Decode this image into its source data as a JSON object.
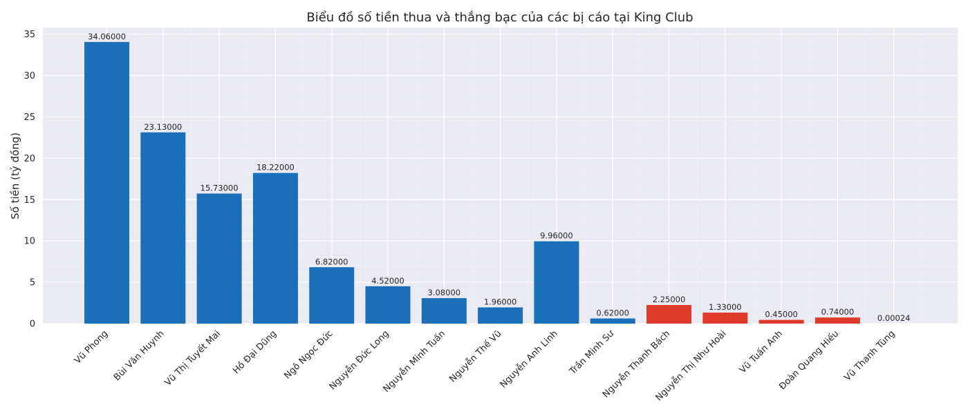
{
  "chart_data": {
    "type": "bar",
    "title": "Biểu đồ số tiền thua và thắng bạc của các bị cáo tại King Club",
    "xlabel": "",
    "ylabel": "Số tiền (tỷ đồng)",
    "ylim": [
      0,
      35.8
    ],
    "yticks": [
      0,
      5,
      10,
      15,
      20,
      25,
      30,
      35
    ],
    "grid": true,
    "categories": [
      "Vũ Phong",
      "Bùi Văn Huynh",
      "Vũ Thị Tuyết Mai",
      "Hồ Đại Dũng",
      "Ngô Ngọc Đức",
      "Nguyễn Đức Long",
      "Nguyễn Minh Tuấn",
      "Nguyễn Thế Vũ",
      "Nguyễn Anh Linh",
      "Trần Minh Sư",
      "Nguyễn Thanh Bách",
      "Nguyễn Thị Như Hoài",
      "Vũ Tuấn Anh",
      "Đoàn Quang Hiếu",
      "Vũ Thanh Tùng"
    ],
    "values": [
      34.06,
      23.13,
      15.73,
      18.22,
      6.82,
      4.52,
      3.08,
      1.96,
      9.96,
      0.62,
      2.25,
      1.33,
      0.45,
      0.74,
      0.00024
    ],
    "value_labels": [
      "34.06000",
      "23.13000",
      "15.73000",
      "18.22000",
      "6.82000",
      "4.52000",
      "3.08000",
      "1.96000",
      "9.96000",
      "0.62000",
      "2.25000",
      "1.33000",
      "0.45000",
      "0.74000",
      "0.00024"
    ],
    "bar_colors": [
      "#1a6fb8",
      "#1a6fb8",
      "#1a6fb8",
      "#1a6fb8",
      "#1a6fb8",
      "#1a6fb8",
      "#1a6fb8",
      "#1a6fb8",
      "#1a6fb8",
      "#1a6fb8",
      "#e03a2a",
      "#e03a2a",
      "#e03a2a",
      "#e03a2a",
      "#e03a2a"
    ]
  },
  "colors": {
    "loss_bar": "#1a6fb8",
    "win_bar": "#e03a2a",
    "plot_background": "#eaeaf2",
    "grid": "#ffffff"
  }
}
